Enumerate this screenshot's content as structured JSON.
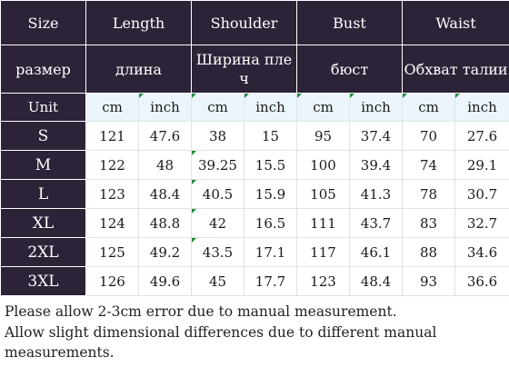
{
  "header": {
    "size": "Size",
    "length": "Length",
    "shoulder": "Shoulder",
    "bust": "Bust",
    "waist": "Waist"
  },
  "header_ru": {
    "size": "размер",
    "length": "длина",
    "shoulder_line1": "Ширина пле",
    "shoulder_line2": "ч",
    "bust": "бюст",
    "waist": "Обхват талии"
  },
  "units": {
    "label": "Unit",
    "cm": "cm",
    "inch": "inch"
  },
  "rows": [
    {
      "size": "S",
      "length_cm": "121",
      "length_in": "47.6",
      "shoulder_cm": "38",
      "shoulder_in": "15",
      "bust_cm": "95",
      "bust_in": "37.4",
      "waist_cm": "70",
      "waist_in": "27.6"
    },
    {
      "size": "M",
      "length_cm": "122",
      "length_in": "48",
      "shoulder_cm": "39.25",
      "shoulder_in": "15.5",
      "bust_cm": "100",
      "bust_in": "39.4",
      "waist_cm": "74",
      "waist_in": "29.1"
    },
    {
      "size": "L",
      "length_cm": "123",
      "length_in": "48.4",
      "shoulder_cm": "40.5",
      "shoulder_in": "15.9",
      "bust_cm": "105",
      "bust_in": "41.3",
      "waist_cm": "78",
      "waist_in": "30.7"
    },
    {
      "size": "XL",
      "length_cm": "124",
      "length_in": "48.8",
      "shoulder_cm": "42",
      "shoulder_in": "16.5",
      "bust_cm": "111",
      "bust_in": "43.7",
      "waist_cm": "83",
      "waist_in": "32.7"
    },
    {
      "size": "2XL",
      "length_cm": "125",
      "length_in": "49.2",
      "shoulder_cm": "43.5",
      "shoulder_in": "17.1",
      "bust_cm": "117",
      "bust_in": "46.1",
      "waist_cm": "88",
      "waist_in": "34.6"
    },
    {
      "size": "3XL",
      "length_cm": "126",
      "length_in": "49.6",
      "shoulder_cm": "45",
      "shoulder_in": "17.7",
      "bust_cm": "123",
      "bust_in": "48.4",
      "waist_cm": "93",
      "waist_in": "36.6"
    }
  ],
  "notes": {
    "line1": "Please allow 2-3cm error due to manual measurement.",
    "line2": "Allow slight dimensional differences due to different manual",
    "line3": "measurements."
  },
  "colors": {
    "header_bg": "#2d2338",
    "unit_bg": "#ebf5fb",
    "corner_marker": "#1e8a3d"
  }
}
